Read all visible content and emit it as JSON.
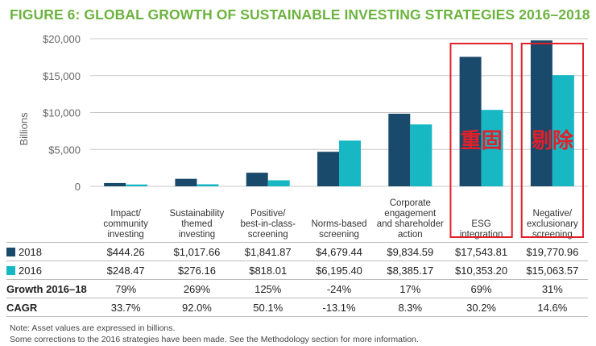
{
  "chart_data": {
    "type": "bar",
    "title": "FIGURE 6: GLOBAL GROWTH OF SUSTAINABLE INVESTING STRATEGIES 2016–2018",
    "ylabel": "Billions",
    "ylim": [
      0,
      20000
    ],
    "yticks": [
      0,
      5000,
      10000,
      15000,
      20000
    ],
    "ytick_labels": [
      "0",
      "$5,000",
      "$10,000",
      "$15,000",
      "$20,000"
    ],
    "grid": true,
    "categories": [
      [
        "Impact/",
        "community",
        "investing"
      ],
      [
        "Sustainability",
        "themed",
        "investing"
      ],
      [
        "Positive/",
        "best-in-class-",
        "screening"
      ],
      [
        "Norms-based",
        "screening"
      ],
      [
        "Corporate",
        "engagement",
        "and shareholder",
        "action"
      ],
      [
        "ESG",
        "integration"
      ],
      [
        "Negative/",
        "exclusionary",
        "screening"
      ]
    ],
    "series": [
      {
        "name": "2018",
        "color": "#1a4a6b",
        "values": [
          444.26,
          1017.66,
          1841.87,
          4679.44,
          9834.59,
          17543.81,
          19770.96
        ],
        "labels": [
          "$444.26",
          "$1,017.66",
          "$1,841.87",
          "$4,679.44",
          "$9,834.59",
          "$17,543.81",
          "$19,770.96"
        ]
      },
      {
        "name": "2016",
        "color": "#17b8c4",
        "values": [
          248.47,
          276.16,
          818.01,
          6195.4,
          8385.17,
          10353.2,
          15063.57
        ],
        "labels": [
          "$248.47",
          "$276.16",
          "$818.01",
          "$6,195.40",
          "$8,385.17",
          "$10,353.20",
          "$15,063.57"
        ]
      }
    ],
    "metrics": [
      {
        "name": "Growth 2016–18",
        "values": [
          "79%",
          "269%",
          "125%",
          "-24%",
          "17%",
          "69%",
          "31%"
        ]
      },
      {
        "name": "CAGR",
        "values": [
          "33.7%",
          "92.0%",
          "50.1%",
          "-13.1%",
          "8.3%",
          "30.2%",
          "14.6%"
        ]
      }
    ],
    "annotations": [
      {
        "category_index": 5,
        "text": "重固",
        "color": "#e0202a"
      },
      {
        "category_index": 6,
        "text": "剔除",
        "color": "#e0202a"
      }
    ]
  },
  "notes": [
    "Note: Asset values are expressed in billions.",
    "Some corrections to the 2016 strategies have been made. See the Methodology section for more information."
  ]
}
